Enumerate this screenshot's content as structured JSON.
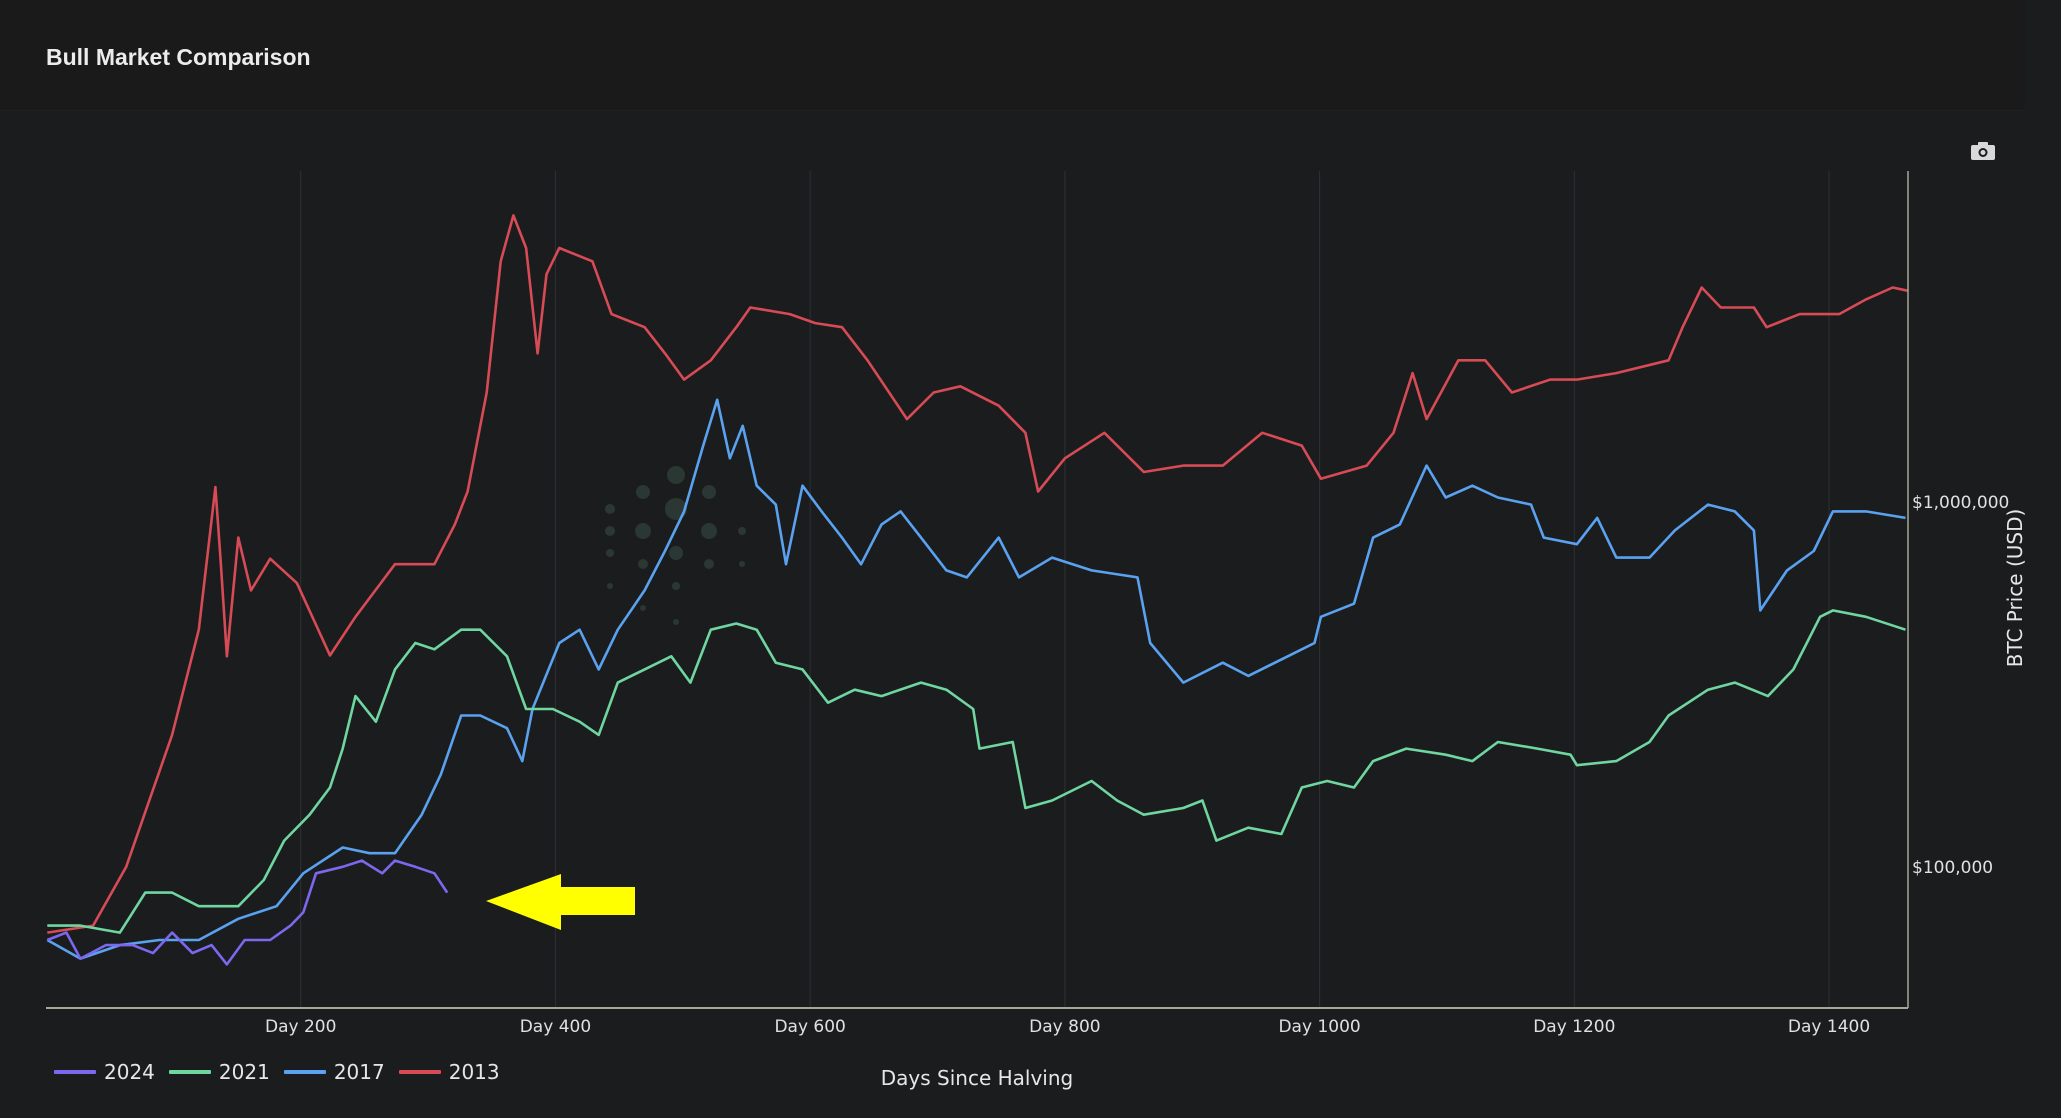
{
  "header": {
    "title": "Bull Market Comparison"
  },
  "toolbar": {
    "camera_icon": "camera-icon"
  },
  "chart_data": {
    "type": "line",
    "title": "Bull Market Comparison",
    "xlabel": "Days Since Halving",
    "ylabel": "BTC Price (USD)",
    "yscale": "log",
    "xlim": [
      0,
      1462
    ],
    "ylim": [
      41000,
      8100000
    ],
    "xticks": [
      {
        "value": 200,
        "label": "Day 200"
      },
      {
        "value": 400,
        "label": "Day 400"
      },
      {
        "value": 600,
        "label": "Day 600"
      },
      {
        "value": 800,
        "label": "Day 800"
      },
      {
        "value": 1000,
        "label": "Day 1000"
      },
      {
        "value": 1200,
        "label": "Day 1200"
      },
      {
        "value": 1400,
        "label": "Day 1400"
      }
    ],
    "yticks": [
      {
        "value": 100000,
        "label": "$100,000"
      },
      {
        "value": 1000000,
        "label": "$1,000,000"
      }
    ],
    "grid": "vertical",
    "legend_position": "bottom-left",
    "annotation": {
      "type": "arrow",
      "color": "#ffff00",
      "points_to_day": 315,
      "points_to_price": 85000
    },
    "series": [
      {
        "name": "2024",
        "color": "#7b68ee",
        "points": [
          [
            1,
            63000
          ],
          [
            16,
            66000
          ],
          [
            27,
            56000
          ],
          [
            47,
            61000
          ],
          [
            68,
            61000
          ],
          [
            84,
            58000
          ],
          [
            99,
            66000
          ],
          [
            115,
            58000
          ],
          [
            130,
            61000
          ],
          [
            142,
            54000
          ],
          [
            156,
            63000
          ],
          [
            176,
            63000
          ],
          [
            192,
            69000
          ],
          [
            202,
            75000
          ],
          [
            212,
            96000
          ],
          [
            233,
            100000
          ],
          [
            248,
            104000
          ],
          [
            264,
            96000
          ],
          [
            274,
            104000
          ],
          [
            290,
            100000
          ],
          [
            305,
            96000
          ],
          [
            315,
            85000
          ]
        ]
      },
      {
        "name": "2021",
        "color": "#6fd6a0",
        "points": [
          [
            1,
            69000
          ],
          [
            27,
            69000
          ],
          [
            58,
            66000
          ],
          [
            78,
            85000
          ],
          [
            99,
            85000
          ],
          [
            120,
            78000
          ],
          [
            151,
            78000
          ],
          [
            171,
            92000
          ],
          [
            187,
            118000
          ],
          [
            207,
            139000
          ],
          [
            223,
            165000
          ],
          [
            233,
            211000
          ],
          [
            243,
            294000
          ],
          [
            259,
            250000
          ],
          [
            274,
            348000
          ],
          [
            290,
            411000
          ],
          [
            305,
            395000
          ],
          [
            326,
            447000
          ],
          [
            341,
            447000
          ],
          [
            362,
            378000
          ],
          [
            377,
            271000
          ],
          [
            398,
            271000
          ],
          [
            419,
            250000
          ],
          [
            434,
            230000
          ],
          [
            449,
            320000
          ],
          [
            470,
            348000
          ],
          [
            491,
            378000
          ],
          [
            506,
            320000
          ],
          [
            522,
            447000
          ],
          [
            542,
            465000
          ],
          [
            558,
            447000
          ],
          [
            573,
            363000
          ],
          [
            594,
            348000
          ],
          [
            614,
            282000
          ],
          [
            635,
            306000
          ],
          [
            656,
            294000
          ],
          [
            687,
            320000
          ],
          [
            707,
            306000
          ],
          [
            728,
            271000
          ],
          [
            733,
            211000
          ],
          [
            759,
            220000
          ],
          [
            769,
            145000
          ],
          [
            790,
            152000
          ],
          [
            821,
            172000
          ],
          [
            841,
            152000
          ],
          [
            862,
            139000
          ],
          [
            893,
            145000
          ],
          [
            908,
            152000
          ],
          [
            919,
            118000
          ],
          [
            944,
            128000
          ],
          [
            970,
            123000
          ],
          [
            986,
            165000
          ],
          [
            1006,
            172000
          ],
          [
            1027,
            165000
          ],
          [
            1042,
            195000
          ],
          [
            1068,
            211000
          ],
          [
            1099,
            203000
          ],
          [
            1120,
            195000
          ],
          [
            1140,
            220000
          ],
          [
            1171,
            211000
          ],
          [
            1197,
            203000
          ],
          [
            1202,
            190000
          ],
          [
            1233,
            195000
          ],
          [
            1259,
            220000
          ],
          [
            1274,
            260000
          ],
          [
            1305,
            306000
          ],
          [
            1326,
            320000
          ],
          [
            1352,
            294000
          ],
          [
            1372,
            348000
          ],
          [
            1393,
            485000
          ],
          [
            1403,
            505000
          ],
          [
            1429,
            485000
          ],
          [
            1460,
            447000
          ]
        ]
      },
      {
        "name": "2017",
        "color": "#5aa2f0",
        "points": [
          [
            1,
            63000
          ],
          [
            27,
            56000
          ],
          [
            58,
            61000
          ],
          [
            89,
            63000
          ],
          [
            120,
            63000
          ],
          [
            151,
            72000
          ],
          [
            181,
            78000
          ],
          [
            202,
            96000
          ],
          [
            233,
            113000
          ],
          [
            254,
            109000
          ],
          [
            274,
            109000
          ],
          [
            295,
            139000
          ],
          [
            310,
            179000
          ],
          [
            326,
            260000
          ],
          [
            341,
            260000
          ],
          [
            362,
            240000
          ],
          [
            374,
            195000
          ],
          [
            382,
            271000
          ],
          [
            403,
            411000
          ],
          [
            419,
            447000
          ],
          [
            434,
            348000
          ],
          [
            449,
            447000
          ],
          [
            470,
            573000
          ],
          [
            486,
            735000
          ],
          [
            501,
            944000
          ],
          [
            516,
            1430000
          ],
          [
            527,
            1910000
          ],
          [
            537,
            1320000
          ],
          [
            547,
            1620000
          ],
          [
            558,
            1110000
          ],
          [
            573,
            985000
          ],
          [
            581,
            676000
          ],
          [
            594,
            1110000
          ],
          [
            609,
            944000
          ],
          [
            625,
            800000
          ],
          [
            640,
            676000
          ],
          [
            656,
            869000
          ],
          [
            671,
            944000
          ],
          [
            687,
            800000
          ],
          [
            707,
            650000
          ],
          [
            723,
            622000
          ],
          [
            748,
            800000
          ],
          [
            764,
            622000
          ],
          [
            790,
            705000
          ],
          [
            821,
            650000
          ],
          [
            857,
            622000
          ],
          [
            867,
            411000
          ],
          [
            893,
            320000
          ],
          [
            924,
            363000
          ],
          [
            944,
            334000
          ],
          [
            975,
            378000
          ],
          [
            996,
            411000
          ],
          [
            1001,
            485000
          ],
          [
            1027,
            527000
          ],
          [
            1042,
            800000
          ],
          [
            1063,
            869000
          ],
          [
            1084,
            1260000
          ],
          [
            1099,
            1030000
          ],
          [
            1120,
            1110000
          ],
          [
            1140,
            1030000
          ],
          [
            1166,
            985000
          ],
          [
            1176,
            800000
          ],
          [
            1202,
            767000
          ],
          [
            1218,
            906000
          ],
          [
            1233,
            705000
          ],
          [
            1259,
            705000
          ],
          [
            1279,
            837000
          ],
          [
            1305,
            985000
          ],
          [
            1326,
            944000
          ],
          [
            1341,
            837000
          ],
          [
            1346,
            505000
          ],
          [
            1367,
            650000
          ],
          [
            1388,
            735000
          ],
          [
            1403,
            944000
          ],
          [
            1429,
            944000
          ],
          [
            1460,
            906000
          ]
        ]
      },
      {
        "name": "2013",
        "color": "#d64b55",
        "points": [
          [
            1,
            66000
          ],
          [
            37,
            69000
          ],
          [
            63,
            100000
          ],
          [
            99,
            230000
          ],
          [
            120,
            447000
          ],
          [
            133,
            1100000
          ],
          [
            137,
            700000
          ],
          [
            142,
            378000
          ],
          [
            151,
            800000
          ],
          [
            161,
            573000
          ],
          [
            176,
            700000
          ],
          [
            197,
            600000
          ],
          [
            223,
            380000
          ],
          [
            243,
            485000
          ],
          [
            274,
            676000
          ],
          [
            305,
            676000
          ],
          [
            321,
            869000
          ],
          [
            331,
            1070000
          ],
          [
            346,
            2000000
          ],
          [
            357,
            4580000
          ],
          [
            367,
            6120000
          ],
          [
            377,
            4980000
          ],
          [
            386,
            2560000
          ],
          [
            393,
            4220000
          ],
          [
            403,
            4980000
          ],
          [
            429,
            4580000
          ],
          [
            444,
            3280000
          ],
          [
            470,
            3020000
          ],
          [
            486,
            2560000
          ],
          [
            501,
            2170000
          ],
          [
            522,
            2450000
          ],
          [
            542,
            3020000
          ],
          [
            553,
            3420000
          ],
          [
            584,
            3280000
          ],
          [
            604,
            3100000
          ],
          [
            625,
            3020000
          ],
          [
            645,
            2450000
          ],
          [
            676,
            1690000
          ],
          [
            697,
            2000000
          ],
          [
            718,
            2080000
          ],
          [
            748,
            1840000
          ],
          [
            769,
            1550000
          ],
          [
            779,
            1070000
          ],
          [
            800,
            1320000
          ],
          [
            831,
            1550000
          ],
          [
            862,
            1210000
          ],
          [
            893,
            1260000
          ],
          [
            924,
            1260000
          ],
          [
            955,
            1550000
          ],
          [
            986,
            1430000
          ],
          [
            1001,
            1160000
          ],
          [
            1037,
            1260000
          ],
          [
            1058,
            1550000
          ],
          [
            1073,
            2260000
          ],
          [
            1084,
            1690000
          ],
          [
            1109,
            2450000
          ],
          [
            1130,
            2450000
          ],
          [
            1151,
            2000000
          ],
          [
            1181,
            2170000
          ],
          [
            1202,
            2170000
          ],
          [
            1233,
            2260000
          ],
          [
            1274,
            2450000
          ],
          [
            1285,
            3020000
          ],
          [
            1300,
            3880000
          ],
          [
            1315,
            3420000
          ],
          [
            1341,
            3420000
          ],
          [
            1351,
            3020000
          ],
          [
            1377,
            3280000
          ],
          [
            1408,
            3280000
          ],
          [
            1429,
            3600000
          ],
          [
            1450,
            3880000
          ],
          [
            1462,
            3800000
          ]
        ]
      }
    ]
  }
}
